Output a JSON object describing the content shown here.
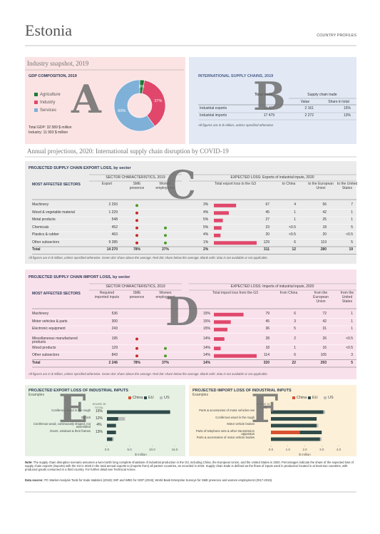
{
  "header": {
    "title": "Estonia",
    "subtitle": "COUNTRY PROFILES"
  },
  "markers": [
    "A",
    "B",
    "C",
    "D",
    "E",
    "F"
  ],
  "snapshot": {
    "heading": "Industry snapshot, 2019",
    "title": "GDP COMPOSITION, 2019",
    "chart_data": {
      "type": "pie",
      "categories": [
        "Agriculture",
        "Industry",
        "Services"
      ],
      "values": [
        3,
        37,
        60
      ],
      "value_labels": [
        "3%",
        "37%",
        "60%"
      ],
      "colors": [
        "#1f7a3a",
        "#e0476b",
        "#7fb0d8"
      ],
      "donut": true
    },
    "totals": [
      "Total GDP: 32 589 $ million",
      "Industry:  11 993 $ million"
    ]
  },
  "supply": {
    "title": "INTERNATIONAL SUPPLY CHAINS, 2019",
    "groups": [
      "Total trade",
      "Supply chain trade"
    ],
    "columns": [
      "Value",
      "Share in total"
    ],
    "rows": [
      [
        "Industrial exports",
        "14 407",
        "2 161",
        "15%"
      ],
      [
        "Industrial imports",
        "17 479",
        "2 272",
        "13%"
      ]
    ],
    "note": "All figures are in $ million, unless specified otherwise."
  },
  "projections": {
    "heading": "Annual projections, 2020: International supply chain disruption by COVID-19"
  },
  "export_loss": {
    "title": "PROJECTED SUPPLY CHAIN EXPORT LOSS, by sector",
    "groups": [
      "SECTOR CHARACTERISTICS, 2019",
      "EXPECTED LOSS: Exports of industrial inputs, 2020"
    ],
    "columns": [
      "MOST AFFECTED SECTORS",
      "Export",
      "SME presence",
      "Women employment",
      "Total export loss to the G3",
      "to China",
      "to the European Union",
      "to the United States"
    ],
    "rows": [
      {
        "sector": "Machinery",
        "value": "2 293",
        "sme": "#4c9a2a",
        "women": null,
        "share": "3%",
        "g3": 67,
        "china": "4",
        "eu": "56",
        "us": "7"
      },
      {
        "sector": "Wood & vegetable material",
        "value": "1 229",
        "sme": "#c62828",
        "women": null,
        "share": "4%",
        "g3": 45,
        "china": "1",
        "eu": "42",
        "us": "1"
      },
      {
        "sector": "Metal products",
        "value": "548",
        "sme": "#c62828",
        "women": null,
        "share": "5%",
        "g3": 27,
        "china": "1",
        "eu": "25",
        "us": "1"
      },
      {
        "sector": "Chemicals",
        "value": "452",
        "sme": "#c62828",
        "women": "#4c9a2a",
        "share": "5%",
        "g3": 23,
        "china": "<0.5",
        "eu": "18",
        "us": "5"
      },
      {
        "sector": "Plastics & rubber",
        "value": "463",
        "sme": "#c62828",
        "women": "#4c9a2a",
        "share": "4%",
        "g3": 20,
        "china": "<0.5",
        "eu": "20",
        "us": "<0.5"
      },
      {
        "sector": "Other subsectors",
        "value": "9 285",
        "sme": "#c62828",
        "women": "#4c9a2a",
        "share": "1%",
        "g3": 129,
        "china": "6",
        "eu": "119",
        "us": "5"
      }
    ],
    "total": {
      "sector": "Total",
      "value": "14 270",
      "sme": "78%",
      "women": "37%",
      "share": "2%",
      "g3": 311,
      "china": "12",
      "eu": "280",
      "us": "19"
    },
    "bar_color": "#e0476b",
    "note": "All figures are in $ million, unless specified otherwise. Green dot: share above the average. Red dot: share below the average. Blank cells: data is not available or not applicable."
  },
  "import_loss": {
    "title": "PROJECTED SUPPLY CHAIN IMPORT LOSS, by sector",
    "groups": [
      "SECTOR CHARACTERISTICS, 2019",
      "EXPECTED LOSS: Imports of industrial inputs, 2020"
    ],
    "columns": [
      "MOST AFFECTED SECTORS",
      "Required imported inputs",
      "SME presence",
      "Women employment",
      "Total import loss from the G3",
      "from China",
      "from the European Union",
      "from the United States"
    ],
    "rows": [
      {
        "sector": "Machinery",
        "value": "536",
        "sme": null,
        "women": null,
        "share": "15%",
        "g3": 79,
        "china": "6",
        "eu": "72",
        "us": "1"
      },
      {
        "sector": "Motor vehicles & parts",
        "value": "300",
        "sme": null,
        "women": null,
        "share": "15%",
        "g3": 45,
        "china": "3",
        "eu": "42",
        "us": "1"
      },
      {
        "sector": "Electronic equipment",
        "value": "243",
        "sme": null,
        "women": null,
        "share": "15%",
        "g3": 36,
        "china": "5",
        "eu": "31",
        "us": "1"
      },
      {
        "sector": "Miscellaneous manufactured products",
        "value": "195",
        "sme": "#c62828",
        "women": null,
        "share": "14%",
        "g3": 28,
        "china": "2",
        "eu": "26",
        "us": "<0.5"
      },
      {
        "sector": "Wood products",
        "value": "129",
        "sme": "#c62828",
        "women": "#4c9a2a",
        "share": "14%",
        "g3": 18,
        "china": "1",
        "eu": "16",
        "us": "<0.5"
      },
      {
        "sector": "Other subsectors",
        "value": "843",
        "sme": "#c62828",
        "women": "#4c9a2a",
        "share": "14%",
        "g3": 114,
        "china": "6",
        "eu": "105",
        "us": "3"
      }
    ],
    "total": {
      "sector": "Total",
      "value": "2 246",
      "sme": "78%",
      "women": "37%",
      "share": "14%",
      "g3": 320,
      "china": "22",
      "eu": "293",
      "us": "5"
    },
    "bar_color": "#e0476b",
    "note": "All figures are in $ million, unless specified otherwise. Green dot: share above the average. Red dot: share below the average. Blank cells: data is not available or not applicable."
  },
  "export_chart": {
    "chart_data": {
      "type": "bar",
      "orientation": "horizontal",
      "stacked": true,
      "title": "PROJECTED EXPORT LOSS OF INDUSTRIAL INPUTS",
      "subtitle": "Examples",
      "share_header": "SHARE IN TOTAL",
      "categories": [
        "Coniferous wood in the rough",
        "Benzol",
        "Coniferous wood, continuously shaped, not assembled",
        "Doors, windows & their frames",
        null
      ],
      "share_labels": [
        "15%",
        "12%",
        "4%",
        "13%",
        null
      ],
      "series": [
        {
          "name": "China",
          "color": "#d9502f",
          "values": [
            0,
            0,
            0,
            0,
            0
          ]
        },
        {
          "name": "EU",
          "color": "#2f4a4a",
          "values": [
            14,
            2.5,
            2,
            2,
            1.2
          ]
        },
        {
          "name": "US",
          "color": "#bdbdbd",
          "values": [
            0,
            1.5,
            0,
            0,
            0.3
          ]
        }
      ],
      "xlim": [
        0,
        15
      ],
      "xticks": [
        {
          "value": 0,
          "label": "0.0"
        },
        {
          "value": 5,
          "label": "5.0"
        },
        {
          "value": 10,
          "label": "10.0"
        },
        {
          "value": 15,
          "label": "15.0"
        }
      ],
      "xlabel": "$ million"
    }
  },
  "import_chart": {
    "chart_data": {
      "type": "bar",
      "orientation": "horizontal",
      "stacked": true,
      "title": "PROJECTED IMPORT LOSS OF INDUSTRIAL INPUTS",
      "subtitle": "Examples",
      "share_header": "SHARE IN TOTAL",
      "categories": [
        "Parts & accessories of motor vehicles nes",
        "Coniferous wood in the rough",
        "Motor vehicle brakes",
        "Parts of telephone sets & other transmission apparatus",
        "Parts & accessories of motor vehicle bodies"
      ],
      "series": [
        {
          "name": "China",
          "color": "#d9502f",
          "values": [
            0,
            0,
            0,
            1.7,
            0
          ]
        },
        {
          "name": "EU",
          "color": "#2f4a4a",
          "values": [
            3.1,
            2.7,
            2.7,
            1.3,
            2.9
          ]
        },
        {
          "name": "US",
          "color": "#bdbdbd",
          "values": [
            0.1,
            0,
            0.1,
            0,
            0.1
          ]
        }
      ],
      "xlim": [
        0,
        4
      ],
      "xticks": [
        {
          "value": 0,
          "label": "0.0"
        },
        {
          "value": 1,
          "label": "1.0"
        },
        {
          "value": 2,
          "label": "2.0"
        },
        {
          "value": 3,
          "label": "3.0"
        },
        {
          "value": 4,
          "label": "4.0"
        }
      ],
      "xlabel": "$ million"
    }
  },
  "note": {
    "label": "Note:",
    "text": "The supply chain disruption scenario assumes a two-month long complete shutdown of industrial production in the G3, including China, the European Union, and the United States in 2020. Percentages indicate the share of the expected loss of supply chain exports (imports) with the G3 in 2020 in the total annual exports to (imports from) all partner countries, as recorded in 2019. Supply chain trade is defined as the flows of inputs used in production located in at least two countries, with produced goods consumed in a third country. For further detail see Technical Annex."
  },
  "source": {
    "label": "Data source:",
    "text": "ITC Market Analysis Tools for trade statistics (2019); IMF and WBG for GDP (2019); World Bank Enterprise Surveys for SME presence and women employment (2017-2019)."
  }
}
